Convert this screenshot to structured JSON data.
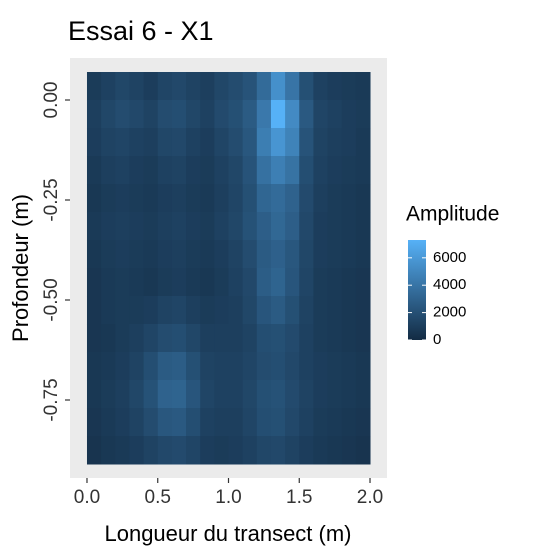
{
  "chart_data": {
    "type": "heatmap",
    "title": "Essai 6 - X1",
    "x_label": "Longueur du transect (m)",
    "y_label": "Profondeur (m)",
    "legend_title": "Amplitude",
    "colors": [
      "#132B43",
      "#56B1F7"
    ],
    "color_range": [
      0,
      7300
    ],
    "color_ticks": [
      0,
      2000,
      4000,
      6000
    ],
    "xlim": [
      -0.12,
      2.12
    ],
    "ylim": [
      -0.945,
      0.105
    ],
    "xticks": [
      {
        "value": 0,
        "label": "0.0"
      },
      {
        "value": 0.5,
        "label": "0.5"
      },
      {
        "value": 1,
        "label": "1.0"
      },
      {
        "value": 1.5,
        "label": "1.5"
      },
      {
        "value": 2,
        "label": "2.0"
      }
    ],
    "yticks": [
      {
        "value": 0,
        "label": "0.00"
      },
      {
        "value": -0.25,
        "label": "-0.25"
      },
      {
        "value": -0.5,
        "label": "-0.50"
      },
      {
        "value": -0.75,
        "label": "-0.75"
      }
    ],
    "x": [
      0.05,
      0.15,
      0.25,
      0.35,
      0.45,
      0.55,
      0.65,
      0.75,
      0.85,
      0.95,
      1.05,
      1.15,
      1.25,
      1.35,
      1.45,
      1.55,
      1.65,
      1.75,
      1.85,
      1.95
    ],
    "y": [
      0.035,
      -0.035,
      -0.105,
      -0.175,
      -0.245,
      -0.315,
      -0.385,
      -0.455,
      -0.525,
      -0.595,
      -0.665,
      -0.735,
      -0.805,
      -0.875
    ],
    "z": [
      [
        900,
        1200,
        1500,
        1300,
        1000,
        1400,
        1600,
        1300,
        1100,
        1500,
        1800,
        2200,
        3500,
        5500,
        4000,
        2000,
        1200,
        1000,
        900,
        800
      ],
      [
        1100,
        1500,
        1800,
        1600,
        1300,
        1800,
        1900,
        1500,
        1200,
        1700,
        2000,
        2600,
        4200,
        7300,
        5200,
        2500,
        1400,
        1200,
        1000,
        900
      ],
      [
        1000,
        1300,
        1400,
        1200,
        1100,
        1500,
        1600,
        1200,
        1000,
        1400,
        1800,
        2400,
        4500,
        5800,
        4800,
        2200,
        1300,
        1100,
        1000,
        800
      ],
      [
        800,
        1100,
        1200,
        1000,
        900,
        1200,
        1300,
        1000,
        900,
        1200,
        1500,
        2200,
        3800,
        4600,
        3900,
        1900,
        1200,
        1000,
        900,
        800
      ],
      [
        700,
        900,
        1000,
        900,
        800,
        1000,
        1100,
        900,
        800,
        1100,
        1400,
        2000,
        3200,
        3500,
        3000,
        1700,
        1100,
        900,
        800,
        700
      ],
      [
        800,
        1000,
        1100,
        1000,
        900,
        1100,
        1200,
        1000,
        900,
        1200,
        1500,
        2100,
        2800,
        3300,
        2800,
        1600,
        1000,
        900,
        800,
        700
      ],
      [
        700,
        900,
        1000,
        900,
        800,
        1000,
        1100,
        900,
        800,
        1000,
        1300,
        1800,
        2600,
        2900,
        2400,
        1500,
        1000,
        900,
        800,
        700
      ],
      [
        600,
        800,
        900,
        800,
        700,
        900,
        1000,
        800,
        700,
        900,
        1200,
        1600,
        2700,
        3100,
        2300,
        1400,
        900,
        800,
        700,
        600
      ],
      [
        600,
        800,
        900,
        900,
        1000,
        1300,
        1400,
        1100,
        900,
        1000,
        1100,
        1500,
        2300,
        2600,
        2000,
        1300,
        900,
        800,
        700,
        600
      ],
      [
        600,
        700,
        900,
        1100,
        1400,
        1800,
        1900,
        1500,
        1100,
        1100,
        1100,
        1300,
        1900,
        2000,
        1700,
        1200,
        900,
        800,
        700,
        600
      ],
      [
        700,
        800,
        1000,
        1300,
        1900,
        2600,
        2700,
        2000,
        1300,
        1200,
        1200,
        1400,
        1800,
        1900,
        1600,
        1200,
        1000,
        900,
        800,
        700
      ],
      [
        700,
        900,
        1100,
        1500,
        2100,
        3000,
        3100,
        2300,
        1400,
        1200,
        1200,
        1500,
        2000,
        2100,
        1700,
        1300,
        1000,
        900,
        800,
        700
      ],
      [
        600,
        800,
        1000,
        1300,
        1800,
        2400,
        2500,
        1900,
        1200,
        1100,
        1100,
        1400,
        1900,
        2000,
        1600,
        1200,
        900,
        800,
        700,
        600
      ],
      [
        500,
        700,
        800,
        1000,
        1300,
        1600,
        1700,
        1400,
        1000,
        900,
        1000,
        1200,
        1500,
        1600,
        1300,
        1000,
        800,
        700,
        600,
        500
      ]
    ]
  }
}
